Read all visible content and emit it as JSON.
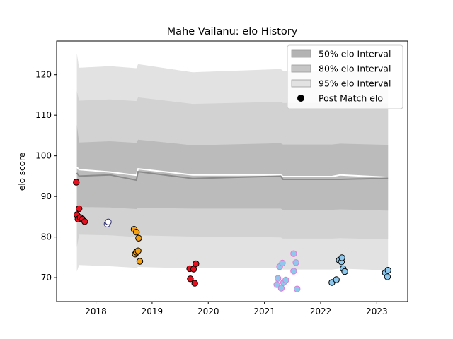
{
  "chart_data": {
    "type": "line",
    "title": "Mahe Vailanu: elo History",
    "xlabel": "",
    "ylabel": "elo score",
    "xlim": [
      2017.3,
      2023.55
    ],
    "ylim": [
      64.1,
      128.3
    ],
    "xticks": [
      2018,
      2019,
      2020,
      2021,
      2022,
      2023
    ],
    "yticks": [
      70,
      80,
      90,
      100,
      110,
      120
    ],
    "grid": false,
    "legend_position": "top-right",
    "legend": [
      {
        "label": "50% elo Interval",
        "kind": "band",
        "color": "#b3b3b3"
      },
      {
        "label": "80% elo Interval",
        "kind": "band",
        "color": "#c6c6c6"
      },
      {
        "label": "95% elo Interval",
        "kind": "band",
        "color": "#e2e2e2"
      },
      {
        "label": "Post Match elo",
        "kind": "point",
        "color": "#000000"
      }
    ],
    "series": [
      {
        "kind": "line",
        "color": "#ffffff",
        "x": [
          2017.66,
          2017.7,
          2018.25,
          2018.72,
          2018.75,
          2019.72,
          2021.29,
          2021.33,
          2022.2,
          2022.35,
          2023.2
        ],
        "y": [
          97.2,
          96.6,
          96.0,
          95.2,
          96.8,
          95.3,
          95.3,
          94.9,
          94.9,
          95.3,
          94.7
        ]
      },
      {
        "kind": "line",
        "color": "#8a8a8a",
        "x": [
          2017.66,
          2017.7,
          2018.25,
          2018.72,
          2018.75,
          2019.72,
          2021.29,
          2021.33,
          2022.2,
          2022.35,
          2023.2
        ],
        "y": [
          95.8,
          95.0,
          95.3,
          94.0,
          96.1,
          94.4,
          95.0,
          94.2,
          94.2,
          94.2,
          94.5
        ]
      }
    ],
    "bands": [
      {
        "name": "95% elo Interval",
        "color": "#e2e2e2",
        "x": [
          2017.66,
          2017.7,
          2018.25,
          2018.72,
          2018.75,
          2019.72,
          2021.29,
          2021.33,
          2022.2,
          2022.35,
          2023.2
        ],
        "upper": [
          125.3,
          121.7,
          122.1,
          121.6,
          122.6,
          120.6,
          121.4,
          121.0,
          121.0,
          121.3,
          120.8
        ],
        "lower": [
          71.5,
          73.1,
          72.8,
          72.4,
          72.6,
          72.3,
          72.3,
          72.0,
          72.0,
          72.2,
          71.8
        ]
      },
      {
        "name": "80% elo Interval",
        "color": "#d2d2d2",
        "x": [
          2017.66,
          2017.7,
          2018.25,
          2018.72,
          2018.75,
          2019.72,
          2021.29,
          2021.33,
          2022.2,
          2022.35,
          2023.2
        ],
        "upper": [
          116.0,
          113.6,
          113.9,
          113.5,
          114.4,
          112.8,
          113.3,
          113.0,
          113.0,
          113.2,
          112.9
        ],
        "lower": [
          77.4,
          80.6,
          80.4,
          80.0,
          80.4,
          80.1,
          79.9,
          79.6,
          79.6,
          79.7,
          79.4
        ]
      },
      {
        "name": "50% elo Interval",
        "color": "#bbbbbb",
        "x": [
          2017.66,
          2017.7,
          2018.25,
          2018.72,
          2018.75,
          2019.72,
          2021.29,
          2021.33,
          2022.2,
          2022.35,
          2023.2
        ],
        "upper": [
          107.7,
          103.3,
          103.6,
          103.2,
          104.0,
          102.6,
          103.1,
          102.8,
          102.8,
          103.0,
          102.7
        ],
        "lower": [
          85.2,
          87.4,
          87.3,
          86.9,
          87.2,
          87.0,
          87.0,
          86.7,
          86.7,
          86.8,
          86.5
        ]
      }
    ],
    "points": [
      {
        "x": 2017.65,
        "y": 93.5,
        "fill": "#e8101e",
        "stroke": "#000000"
      },
      {
        "x": 2017.66,
        "y": 85.5,
        "fill": "#e8101e",
        "stroke": "#000000"
      },
      {
        "x": 2017.68,
        "y": 84.4,
        "fill": "#e8101e",
        "stroke": "#000000"
      },
      {
        "x": 2017.7,
        "y": 87.0,
        "fill": "#e8101e",
        "stroke": "#000000"
      },
      {
        "x": 2017.72,
        "y": 84.8,
        "fill": "#e8101e",
        "stroke": "#000000"
      },
      {
        "x": 2017.76,
        "y": 84.4,
        "fill": "#e8101e",
        "stroke": "#000000"
      },
      {
        "x": 2017.8,
        "y": 83.8,
        "fill": "#e8101e",
        "stroke": "#000000"
      },
      {
        "x": 2018.2,
        "y": 83.2,
        "fill": "#ffffff",
        "stroke": "#2a2a6a"
      },
      {
        "x": 2018.22,
        "y": 83.7,
        "fill": "#ffffff",
        "stroke": "#2a2a6a"
      },
      {
        "x": 2018.68,
        "y": 81.9,
        "fill": "#f5a00f",
        "stroke": "#000000"
      },
      {
        "x": 2018.72,
        "y": 81.2,
        "fill": "#f5a00f",
        "stroke": "#000000"
      },
      {
        "x": 2018.76,
        "y": 79.7,
        "fill": "#f5a00f",
        "stroke": "#000000"
      },
      {
        "x": 2018.7,
        "y": 75.8,
        "fill": "#f5a00f",
        "stroke": "#000000"
      },
      {
        "x": 2018.72,
        "y": 76.3,
        "fill": "#f5a00f",
        "stroke": "#000000"
      },
      {
        "x": 2018.75,
        "y": 76.6,
        "fill": "#f5a00f",
        "stroke": "#000000"
      },
      {
        "x": 2018.78,
        "y": 74.0,
        "fill": "#f5a00f",
        "stroke": "#000000"
      },
      {
        "x": 2019.67,
        "y": 72.2,
        "fill": "#e8101e",
        "stroke": "#000000"
      },
      {
        "x": 2019.74,
        "y": 72.1,
        "fill": "#e8101e",
        "stroke": "#000000"
      },
      {
        "x": 2019.78,
        "y": 73.4,
        "fill": "#e8101e",
        "stroke": "#000000"
      },
      {
        "x": 2019.68,
        "y": 69.7,
        "fill": "#e8101e",
        "stroke": "#000000"
      },
      {
        "x": 2019.76,
        "y": 68.6,
        "fill": "#e8101e",
        "stroke": "#000000"
      },
      {
        "x": 2021.22,
        "y": 68.3,
        "fill": "#8ec8ec",
        "stroke": "#e07ad6"
      },
      {
        "x": 2021.24,
        "y": 69.8,
        "fill": "#8ec8ec",
        "stroke": "#e07ad6"
      },
      {
        "x": 2021.27,
        "y": 72.7,
        "fill": "#8ec8ec",
        "stroke": "#e07ad6"
      },
      {
        "x": 2021.3,
        "y": 67.4,
        "fill": "#8ec8ec",
        "stroke": "#e07ad6"
      },
      {
        "x": 2021.32,
        "y": 73.6,
        "fill": "#8ec8ec",
        "stroke": "#e07ad6"
      },
      {
        "x": 2021.34,
        "y": 68.8,
        "fill": "#8ec8ec",
        "stroke": "#e07ad6"
      },
      {
        "x": 2021.38,
        "y": 69.4,
        "fill": "#8ec8ec",
        "stroke": "#e07ad6"
      },
      {
        "x": 2021.52,
        "y": 75.9,
        "fill": "#8ec8ec",
        "stroke": "#e07ad6"
      },
      {
        "x": 2021.52,
        "y": 71.6,
        "fill": "#8ec8ec",
        "stroke": "#e07ad6"
      },
      {
        "x": 2021.56,
        "y": 73.7,
        "fill": "#8ec8ec",
        "stroke": "#e07ad6"
      },
      {
        "x": 2021.58,
        "y": 67.2,
        "fill": "#8ec8ec",
        "stroke": "#e07ad6"
      },
      {
        "x": 2022.2,
        "y": 68.8,
        "fill": "#8ec8ec",
        "stroke": "#000000"
      },
      {
        "x": 2022.28,
        "y": 69.5,
        "fill": "#8ec8ec",
        "stroke": "#000000"
      },
      {
        "x": 2022.33,
        "y": 74.3,
        "fill": "#8ec8ec",
        "stroke": "#000000"
      },
      {
        "x": 2022.37,
        "y": 73.9,
        "fill": "#8ec8ec",
        "stroke": "#000000"
      },
      {
        "x": 2022.38,
        "y": 74.9,
        "fill": "#8ec8ec",
        "stroke": "#000000"
      },
      {
        "x": 2022.4,
        "y": 72.2,
        "fill": "#8ec8ec",
        "stroke": "#000000"
      },
      {
        "x": 2022.43,
        "y": 71.5,
        "fill": "#8ec8ec",
        "stroke": "#000000"
      },
      {
        "x": 2023.15,
        "y": 71.2,
        "fill": "#8ec8ec",
        "stroke": "#000000"
      },
      {
        "x": 2023.19,
        "y": 70.2,
        "fill": "#8ec8ec",
        "stroke": "#000000"
      },
      {
        "x": 2023.2,
        "y": 71.8,
        "fill": "#8ec8ec",
        "stroke": "#000000"
      }
    ]
  }
}
